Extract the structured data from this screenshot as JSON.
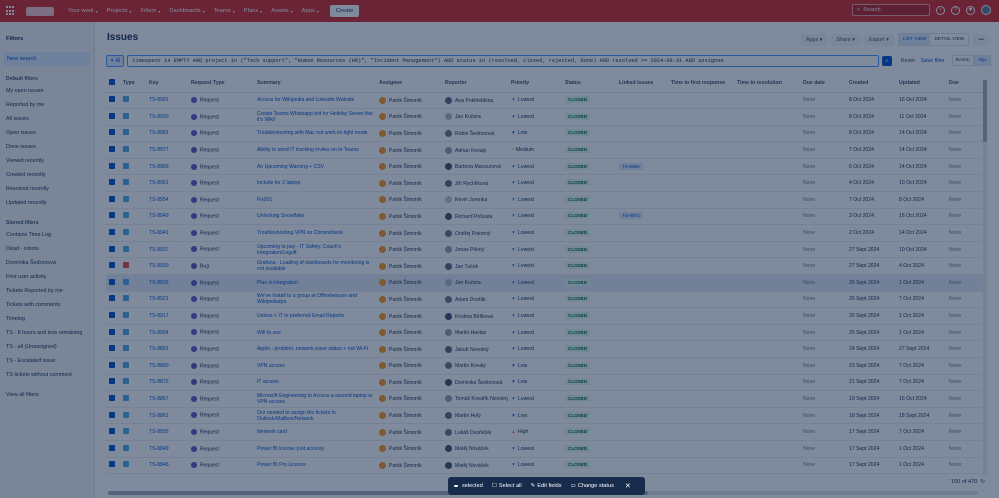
{
  "topbar": {
    "nav": [
      {
        "label": "Your work"
      },
      {
        "label": "Projects"
      },
      {
        "label": "Filters"
      },
      {
        "label": "Dashboards"
      },
      {
        "label": "Teams"
      },
      {
        "label": "Plans"
      },
      {
        "label": "Assets"
      },
      {
        "label": "Apps"
      }
    ],
    "create_label": "Create",
    "search_placeholder": "Search"
  },
  "sidebar": {
    "heading": "Filters",
    "new_search": "New search",
    "default_title": "Default filters",
    "default_items": [
      "My open issues",
      "Reported by me",
      "All issues",
      "Open issues",
      "Done issues",
      "Viewed recently",
      "Created recently",
      "Resolved recently",
      "Updated recently"
    ],
    "starred_title": "Starred filters",
    "starred_items": [
      "Contains Time Log",
      "Dead - robots",
      "Dominika Šedronová",
      "Find user activity",
      "Tickets Reported by me",
      "Tickets with comments",
      "Timelog",
      "TS - 8 hours and less remaining",
      "TS - all (Unassigned)",
      "TS - Escalated issue",
      "TS tickets without comment"
    ],
    "view_all": "View all filters"
  },
  "main": {
    "title": "Issues",
    "apps_label": "Apps",
    "share_label": "Share",
    "export_label": "Export",
    "list_view": "LIST VIEW",
    "detail_view": "DETAIL VIEW",
    "jql_ai": "AI",
    "jql": "timespent is EMPTY AND project in (\"Tech support\", \"Human Resources (HR)\", \"Incident Management\") AND status in (resolved, closed, rejected, Done) AND resolved >= 2024-08-31 AND assignee",
    "reset": "Reset",
    "save_filter": "Save filter",
    "basic": "BASIC",
    "jql_label": "JQL"
  },
  "columns": [
    "Type",
    "Key",
    "Request Type",
    "Summary",
    "Assignee",
    "Reporter",
    "Priority",
    "Status",
    "Linked Issues",
    "Time to first response",
    "Time to resolution",
    "Due date",
    "Created",
    "Updated",
    "Due"
  ],
  "rows": [
    {
      "type": "task",
      "key": "TS-8991",
      "rt": "Request",
      "summary": "Access for Wikipedia and Linkedin Website",
      "assignee": "Patrik Šimoník",
      "reporter": "Ana Pokhlebkina",
      "priority": "Lowest",
      "p": "lowest",
      "status": "CLOSED",
      "linked": "",
      "ttfr": "",
      "ttr": "",
      "due": "None",
      "created": "8 Oct 2024",
      "updated": "16 Oct 2024",
      "avc": "#5e6c84",
      "hl": false
    },
    {
      "type": "task",
      "key": "TS-8990",
      "rt": "Request",
      "summary": "Create Teams Whatsapp bot for Holiday Server like it's Wiki!",
      "assignee": "Patrik Šimoník",
      "reporter": "Jan Kučera",
      "priority": "Lowest",
      "p": "lowest",
      "status": "CLOSED",
      "linked": "",
      "ttfr": "",
      "ttr": "",
      "due": "None",
      "created": "8 Oct 2024",
      "updated": "11 Oct 2024",
      "avc": "#b3bac5",
      "hl": false
    },
    {
      "type": "task",
      "key": "TS-8981",
      "rt": "Request",
      "summary": "Troubleshooting with Mac not work on light mode",
      "assignee": "Patrik Šimoník",
      "reporter": "Robin Šedronová",
      "priority": "Low",
      "p": "low",
      "status": "CLOSED",
      "linked": "",
      "ttfr": "",
      "ttr": "",
      "due": "None",
      "created": "8 Oct 2024",
      "updated": "14 Oct 2024",
      "avc": "#6b778c",
      "hl": false
    },
    {
      "type": "task",
      "key": "TS-8977",
      "rt": "Request",
      "summary": "Ability to send IT tracking invites on to Teams",
      "assignee": "Patrik Šimoník",
      "reporter": "Adrian Kovaly",
      "priority": "Medium",
      "p": "medium",
      "status": "CLOSED",
      "linked": "",
      "ttfr": "",
      "ttr": "",
      "due": "None",
      "created": "7 Oct 2024",
      "updated": "14 Oct 2024",
      "avc": "#97a0af",
      "hl": false
    },
    {
      "type": "task",
      "key": "TS-8969",
      "rt": "Request",
      "summary": "An Upcoming Warning + CSV",
      "assignee": "Patrik Šimoník",
      "reporter": "Barbora Macounová",
      "priority": "Lowest",
      "p": "lowest",
      "status": "CLOSED",
      "linked": "TS-8956",
      "ttfr": "",
      "ttr": "",
      "due": "None",
      "created": "6 Oct 2024",
      "updated": "14 Oct 2024",
      "avc": "#42526e",
      "hl": false
    },
    {
      "type": "task",
      "key": "TS-8961",
      "rt": "Request",
      "summary": "Include for 2 laptop",
      "assignee": "Patrik Šimoník",
      "reporter": "Jiří Rychlíková",
      "priority": "Lowest",
      "p": "lowest",
      "status": "CLOSED",
      "linked": "",
      "ttfr": "",
      "ttr": "",
      "due": "None",
      "created": "4 Oct 2024",
      "updated": "10 Oct 2024",
      "avc": "#5e6c84",
      "hl": false
    },
    {
      "type": "task",
      "key": "TS-8954",
      "rt": "Request",
      "summary": "Fix501",
      "assignee": "Patrik Šimoník",
      "reporter": "Kevin Jurenka",
      "priority": "Lowest",
      "p": "lowest",
      "status": "CLOSED",
      "linked": "",
      "ttfr": "",
      "ttr": "",
      "due": "None",
      "created": "7 Oct 2024",
      "updated": "8 Oct 2024",
      "avc": "#c1c7d0",
      "hl": false
    },
    {
      "type": "task",
      "key": "TS-8949",
      "rt": "Request",
      "summary": "Unlocking Snowflake",
      "assignee": "Patrik Šimoník",
      "reporter": "Richard Pošusta",
      "priority": "Lowest",
      "p": "lowest",
      "status": "CLOSED",
      "linked": "TS-8071",
      "ttfr": "",
      "ttr": "",
      "due": "None",
      "created": "3 Oct 2024",
      "updated": "16 Oct 2024",
      "avc": "#42526e",
      "hl": false
    },
    {
      "type": "task",
      "key": "TS-8941",
      "rt": "Request",
      "summary": "Troubleshooting VPN on Chromebook",
      "assignee": "Patrik Šimoník",
      "reporter": "Ondřej Pokorný",
      "priority": "Lowest",
      "p": "lowest",
      "status": "CLOSED",
      "linked": "",
      "ttfr": "",
      "ttr": "",
      "due": "None",
      "created": "2 Oct 2024",
      "updated": "14 Oct 2024",
      "avc": "#6b778c",
      "hl": false
    },
    {
      "type": "task",
      "key": "TS-8937",
      "rt": "Request",
      "summary": "Upcoming to pay - IT Safety: Coach's Integration/Logoff",
      "assignee": "Patrik Šimoník",
      "reporter": "Jonas Pěkný",
      "priority": "Lowest",
      "p": "lowest",
      "status": "CLOSED",
      "linked": "",
      "ttfr": "",
      "ttr": "",
      "due": "None",
      "created": "27 Sept 2024",
      "updated": "10 Oct 2024",
      "avc": "#97a0af",
      "hl": false
    },
    {
      "type": "bug",
      "key": "TS-8930",
      "rt": "Bug",
      "summary": "Grafana - Loading of dashboards for monitoring is not available",
      "assignee": "Patrik Šimoník",
      "reporter": "Jan Tuček",
      "priority": "Lowest",
      "p": "lowest",
      "status": "CLOSED",
      "linked": "",
      "ttfr": "",
      "ttr": "",
      "due": "None",
      "created": "27 Sept 2024",
      "updated": "4 Oct 2024",
      "avc": "#5e6c84",
      "hl": false
    },
    {
      "type": "task",
      "key": "TS-8926",
      "rt": "Request",
      "summary": "Plan in Integration",
      "assignee": "Patrik Šimoník",
      "reporter": "Jan Kučera",
      "priority": "Lowest",
      "p": "lowest",
      "status": "CLOSED",
      "linked": "",
      "ttfr": "",
      "ttr": "",
      "due": "None",
      "created": "26 Sept 2024",
      "updated": "1 Oct 2024",
      "avc": "#b3bac5",
      "hl": true
    },
    {
      "type": "task",
      "key": "TS-8921",
      "rt": "Request",
      "summary": "We've Install to a group at Officebeacon and Wikipediatpa",
      "assignee": "Patrik Šimoník",
      "reporter": "Adam Dvořák",
      "priority": "Lowest",
      "p": "lowest",
      "status": "CLOSED",
      "linked": "",
      "ttfr": "",
      "ttr": "",
      "due": "None",
      "created": "26 Sept 2024",
      "updated": "7 Oct 2024",
      "avc": "#6b778c",
      "hl": false
    },
    {
      "type": "task",
      "key": "TS-8917",
      "rt": "Request",
      "summary": "Unless + IT to preferred Email Reports",
      "assignee": "Patrik Šimoník",
      "reporter": "Kristina Bělíková",
      "priority": "Lowest",
      "p": "lowest",
      "status": "CLOSED",
      "linked": "",
      "ttfr": "",
      "ttr": "",
      "due": "None",
      "created": "26 Sept 2024",
      "updated": "1 Oct 2024",
      "avc": "#42526e",
      "hl": false
    },
    {
      "type": "task",
      "key": "TS-8904",
      "rt": "Request",
      "summary": "Wifi to use",
      "assignee": "Patrik Šimoník",
      "reporter": "Martin Havlas",
      "priority": "Lowest",
      "p": "lowest",
      "status": "CLOSED",
      "linked": "",
      "ttfr": "",
      "ttr": "",
      "due": "None",
      "created": "25 Sept 2024",
      "updated": "1 Oct 2024",
      "avc": "#97a0af",
      "hl": false
    },
    {
      "type": "task",
      "key": "TS-8891",
      "rt": "Request",
      "summary": "Apple - problem, network issue status + not Wi-Fi",
      "assignee": "Patrik Šimoník",
      "reporter": "Jakub Novotný",
      "priority": "Lowest",
      "p": "lowest",
      "status": "CLOSED",
      "linked": "",
      "ttfr": "",
      "ttr": "",
      "due": "None",
      "created": "24 Sept 2024",
      "updated": "27 Sept 2024",
      "avc": "#5e6c84",
      "hl": false
    },
    {
      "type": "task",
      "key": "TS-8880",
      "rt": "Request",
      "summary": "VPN access",
      "assignee": "Patrik Šimoník",
      "reporter": "Martin Kovaly",
      "priority": "Low",
      "p": "low",
      "status": "CLOSED",
      "linked": "",
      "ttfr": "",
      "ttr": "",
      "due": "None",
      "created": "23 Sept 2024",
      "updated": "7 Oct 2024",
      "avc": "#6b778c",
      "hl": false
    },
    {
      "type": "task",
      "key": "TS-8872",
      "rt": "Request",
      "summary": "IT access",
      "assignee": "Patrik Šimoník",
      "reporter": "Dominika Šedronová",
      "priority": "Low",
      "p": "low",
      "status": "CLOSED",
      "linked": "",
      "ttfr": "",
      "ttr": "",
      "due": "None",
      "created": "21 Sept 2024",
      "updated": "7 Oct 2024",
      "avc": "#42526e",
      "hl": false
    },
    {
      "type": "task",
      "key": "TS-8867",
      "rt": "Request",
      "summary": "Microsoft Engineering to Access a second laptop or VPN access",
      "assignee": "Patrik Šimoník",
      "reporter": "Tomáš Kovařík Novotný",
      "priority": "Lowest",
      "p": "lowest",
      "status": "CLOSED",
      "linked": "",
      "ttfr": "",
      "ttr": "",
      "due": "None",
      "created": "19 Sept 2024",
      "updated": "16 Oct 2024",
      "avc": "#97a0af",
      "hl": false
    },
    {
      "type": "task",
      "key": "TS-8861",
      "rt": "Request",
      "summary": "Our needed to assign the tickets to Outlook/Mailbox/Network",
      "assignee": "Patrik Šimoník",
      "reporter": "Martin Holý",
      "priority": "Low",
      "p": "low",
      "status": "CLOSED",
      "linked": "",
      "ttfr": "",
      "ttr": "",
      "due": "None",
      "created": "18 Sept 2024",
      "updated": "18 Sept 2024",
      "avc": "#5e6c84",
      "hl": false
    },
    {
      "type": "task",
      "key": "TS-8855",
      "rt": "Request",
      "summary": "Network card",
      "assignee": "Patrik Šimoník",
      "reporter": "Lukáš Dvořáček",
      "priority": "High",
      "p": "high",
      "status": "CLOSED",
      "linked": "",
      "ttfr": "",
      "ttr": "",
      "due": "None",
      "created": "17 Sept 2024",
      "updated": "7 Oct 2024",
      "avc": "#6b778c",
      "hl": false
    },
    {
      "type": "task",
      "key": "TS-8849",
      "rt": "Request",
      "summary": "Power BI license (not access)",
      "assignee": "Patrik Šimoník",
      "reporter": "Matěj Nováček",
      "priority": "Lowest",
      "p": "lowest",
      "status": "CLOSED",
      "linked": "",
      "ttfr": "",
      "ttr": "",
      "due": "None",
      "created": "17 Sept 2024",
      "updated": "1 Oct 2024",
      "avc": "#42526e",
      "hl": false
    },
    {
      "type": "task",
      "key": "TS-8848",
      "rt": "Request",
      "summary": "Power BI Pro Licence",
      "assignee": "Patrik Šimoník",
      "reporter": "Matěj Nováček",
      "priority": "Lowest",
      "p": "lowest",
      "status": "CLOSED",
      "linked": "",
      "ttfr": "",
      "ttr": "",
      "due": "None",
      "created": "17 Sept 2024",
      "updated": "1 Oct 2024",
      "avc": "#42526e",
      "hl": false
    }
  ],
  "footer": {
    "counter": "100 of 470"
  },
  "action_bar": {
    "count": "",
    "selected": "selected",
    "select_all": "Select all",
    "edit_fields": "Edit fields",
    "change_status": "Change status"
  }
}
